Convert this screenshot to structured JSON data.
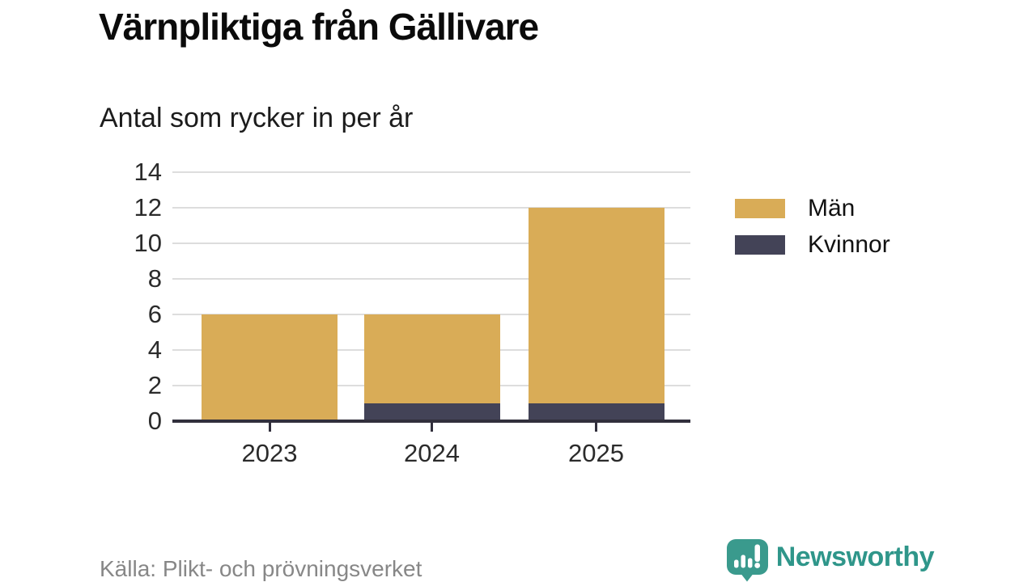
{
  "header": {
    "title": "Värnpliktiga från Gällivare",
    "subtitle": "Antal som rycker in per år"
  },
  "chart_data": {
    "type": "bar",
    "stacked": true,
    "categories": [
      "2023",
      "2024",
      "2025"
    ],
    "series": [
      {
        "name": "Män",
        "color": "#d9ac57",
        "values": [
          6,
          5,
          11
        ]
      },
      {
        "name": "Kvinnor",
        "color": "#434357",
        "values": [
          0,
          1,
          1
        ]
      }
    ],
    "stack_totals": [
      6,
      6,
      12
    ],
    "title": "Värnpliktiga från Gällivare",
    "subtitle": "Antal som rycker in per år",
    "xlabel": "",
    "ylabel": "",
    "ylim": [
      0,
      14
    ],
    "yticks": [
      0,
      2,
      4,
      6,
      8,
      10,
      12,
      14
    ],
    "grid": true,
    "legend_position": "right",
    "legend_entries": [
      "Män",
      "Kvinnor"
    ]
  },
  "footer": {
    "source": "Källa: Plikt- och prövningsverket",
    "brand": "Newsworthy"
  },
  "colors": {
    "men": "#d9ac57",
    "women": "#434357",
    "axis": "#312f3c",
    "grid": "#dddddd",
    "tick_text": "#2b2b2b",
    "source_text": "#878787",
    "brand_teal": "#2f968a",
    "icon_teal": "#3a9a8d"
  }
}
